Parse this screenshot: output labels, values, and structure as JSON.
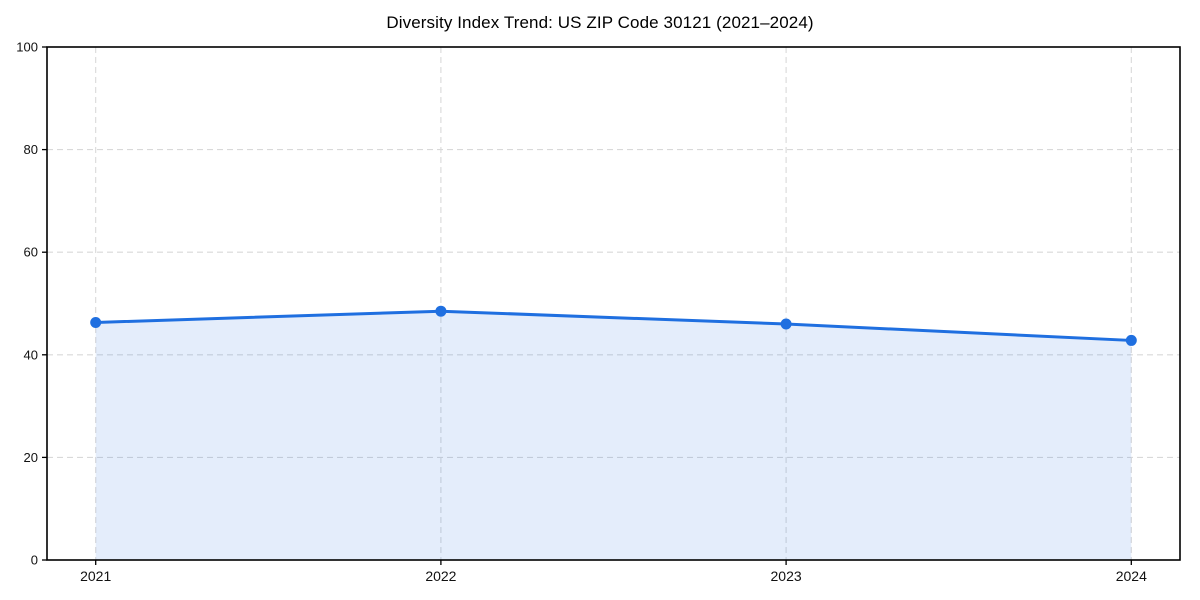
{
  "chart_data": {
    "type": "line",
    "title": "Diversity Index Trend: US ZIP Code 30121 (2021–2024)",
    "categories": [
      "2021",
      "2022",
      "2023",
      "2024"
    ],
    "series": [
      {
        "name": "Diversity Index",
        "values": [
          46.3,
          48.5,
          46.0,
          42.8
        ]
      }
    ],
    "xlabel": "",
    "ylabel": "",
    "ylim": [
      0,
      100
    ],
    "yticks": [
      0,
      20,
      40,
      60,
      80,
      100
    ],
    "grid": true,
    "grid_style": "dashed",
    "legend": "none",
    "area_fill": true,
    "marker": "circle",
    "colors": {
      "line": "#1f6fe0",
      "marker_fill": "#1f6fe0",
      "area_fill": "rgba(31,111,224,0.12)",
      "grid": "#d9d9d9",
      "spine": "#000000",
      "tick_text": "#111111",
      "title_text": "#000000",
      "background": "#ffffff"
    }
  }
}
